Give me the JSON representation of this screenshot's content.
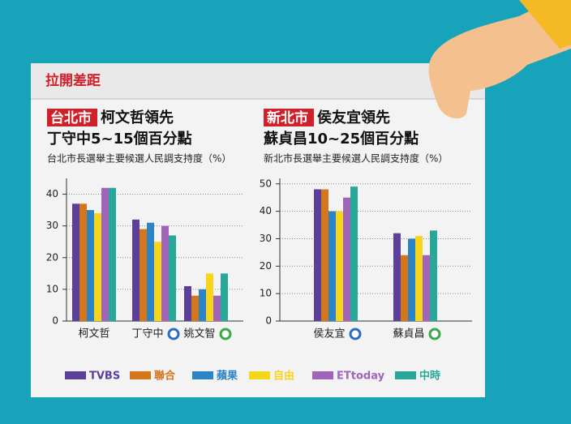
{
  "header": {
    "title": "拉開差距"
  },
  "chart_data": [
    {
      "type": "bar",
      "highlight": "台北市",
      "title": "柯文哲領先",
      "title2": "丁守中5~15個百分點",
      "subtitle": "台北市長選舉主要候選人民調支持度（%）",
      "categories": [
        "柯文哲",
        "丁守中",
        "姚文智"
      ],
      "series": [
        {
          "name": "TVBS",
          "color": "#5b3f99",
          "values": [
            37,
            32,
            11
          ]
        },
        {
          "name": "聯合",
          "color": "#d4761c",
          "values": [
            37,
            29,
            8
          ]
        },
        {
          "name": "蘋果",
          "color": "#2b84c6",
          "values": [
            35,
            31,
            10
          ]
        },
        {
          "name": "自由",
          "color": "#f7d51c",
          "values": [
            34,
            25,
            15
          ]
        },
        {
          "name": "ETtoday",
          "color": "#a064b8",
          "values": [
            42,
            30,
            8
          ]
        },
        {
          "name": "中時",
          "color": "#2aa79b",
          "values": [
            42,
            27,
            15
          ]
        }
      ],
      "ylim": [
        0,
        45
      ],
      "yticks": [
        0,
        10,
        20,
        30,
        40
      ],
      "grid": true
    },
    {
      "type": "bar",
      "highlight": "新北市",
      "title": "侯友宜領先",
      "title2": "蘇貞昌10~25個百分點",
      "subtitle": "新北市長選舉主要候選人民調支持度（%）",
      "categories": [
        "侯友宜",
        "蘇貞昌"
      ],
      "series": [
        {
          "color": "#5b3f99",
          "values": [
            48,
            32
          ]
        },
        {
          "color": "#d4761c",
          "values": [
            48,
            24
          ]
        },
        {
          "color": "#2b84c6",
          "values": [
            40,
            30
          ]
        },
        {
          "color": "#f7d51c",
          "values": [
            40,
            31
          ]
        },
        {
          "color": "#a064b8",
          "values": [
            45,
            24
          ]
        },
        {
          "color": "#2aa79b",
          "values": [
            49,
            33
          ]
        }
      ],
      "ylim": [
        0,
        52
      ],
      "yticks": [
        0,
        10,
        20,
        30,
        40,
        50
      ],
      "grid": true
    }
  ]
}
